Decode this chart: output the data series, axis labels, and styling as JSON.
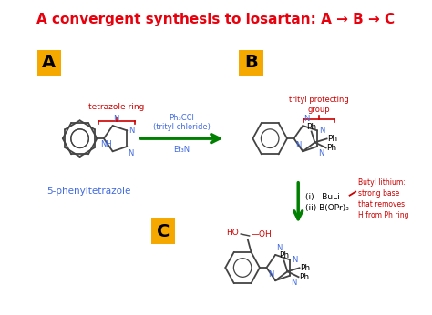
{
  "title": "A convergent synthesis to losartan: A → B → C",
  "title_color": "#e8000d",
  "title_fontsize": 11,
  "bg_color": "#ffffff",
  "label_A": "A",
  "label_B": "B",
  "label_C": "C",
  "label_bg": "#f5a800",
  "label_fontsize": 14,
  "text_5phenyl": "5-phenyltetrazole",
  "text_5phenyl_color": "#4169e1",
  "text_tetrazole": "tetrazole ring",
  "text_tetrazole_color": "#cc0000",
  "text_trityl": "trityl protecting\ngroup",
  "text_trityl_color": "#cc0000",
  "text_reagent1": "Ph₃CCl\n(trityl chloride)",
  "text_reagent2": "Et₃N",
  "text_reagent_color": "#4169e1",
  "text_butyl": "Butyl lithium:\nstrong base\nthat removes\nH from Ph ring",
  "text_butyl_color": "#cc0000",
  "text_step2a": "(i)   BuLi",
  "text_step2b": "(ii) B(OPr)₃",
  "text_step_color": "#000000",
  "arrow1_color": "#008000",
  "arrow2_color": "#008000",
  "nitrogen_color": "#4169e1",
  "bond_color": "#444444",
  "ho_color": "#cc0000",
  "bond_lw": 1.3,
  "hex_r": 20,
  "tet_r": 15
}
